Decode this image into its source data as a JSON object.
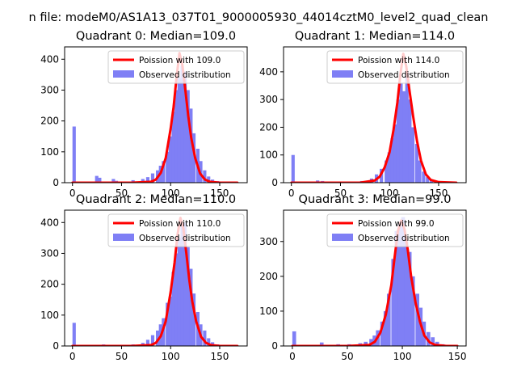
{
  "title": "n file: modeM0/AS1A13_037T01_9000005930_44014cztM0_level2_quad_clean",
  "colors": {
    "poisson": "#ff0000",
    "observed": "#7f7ff5",
    "axis": "#000000"
  },
  "chart_data": [
    {
      "type": "bar",
      "title": "Quadrant 0: Median=109.0",
      "xlim": [
        -8,
        178
      ],
      "ylim": [
        0,
        440
      ],
      "xticks": [
        0,
        50,
        100,
        150
      ],
      "yticks": [
        0,
        100,
        200,
        300,
        400
      ],
      "legend_position": "top-right",
      "series": [
        {
          "name": "Poission with 109.0",
          "kind": "line",
          "color": "#ff0000",
          "x": [
            0,
            60,
            80,
            85,
            90,
            95,
            100,
            103,
            106,
            109,
            112,
            115,
            118,
            121,
            125,
            130,
            135,
            140,
            150,
            168
          ],
          "y": [
            0,
            0,
            3,
            10,
            32,
            80,
            175,
            245,
            340,
            420,
            380,
            300,
            215,
            145,
            80,
            30,
            10,
            3,
            0,
            0
          ]
        },
        {
          "name": "Observed distribution",
          "kind": "histogram",
          "color": "#7f7ff5",
          "bin_width": 3.4,
          "x": [
            0,
            23,
            26,
            40,
            43,
            60,
            70,
            75,
            80,
            85,
            88,
            91,
            95,
            98,
            101,
            104,
            107,
            110,
            113,
            116,
            119,
            122,
            126,
            129,
            133,
            137,
            141,
            146,
            152
          ],
          "y": [
            182,
            22,
            16,
            12,
            6,
            8,
            12,
            18,
            30,
            40,
            55,
            70,
            100,
            150,
            230,
            300,
            340,
            380,
            360,
            300,
            240,
            160,
            110,
            70,
            40,
            20,
            10,
            5,
            2
          ]
        }
      ]
    },
    {
      "type": "bar",
      "title": "Quadrant 1: Median=114.0",
      "xlim": [
        -8,
        178
      ],
      "ylim": [
        0,
        490
      ],
      "xticks": [
        0,
        50,
        100,
        150
      ],
      "yticks": [
        0,
        100,
        200,
        300,
        400
      ],
      "legend_position": "top-right",
      "series": [
        {
          "name": "Poission with 114.0",
          "kind": "line",
          "color": "#ff0000",
          "x": [
            0,
            70,
            85,
            90,
            95,
            100,
            104,
            108,
            111,
            114,
            117,
            120,
            124,
            128,
            132,
            137,
            142,
            150,
            168
          ],
          "y": [
            0,
            0,
            8,
            22,
            55,
            110,
            190,
            290,
            390,
            465,
            420,
            340,
            240,
            150,
            80,
            30,
            10,
            2,
            0
          ]
        },
        {
          "name": "Observed distribution",
          "kind": "histogram",
          "color": "#7f7ff5",
          "bin_width": 3.4,
          "x": [
            0,
            25,
            30,
            40,
            50,
            70,
            80,
            85,
            90,
            95,
            98,
            101,
            104,
            107,
            110,
            113,
            116,
            119,
            122,
            126,
            129,
            133,
            137,
            141,
            146
          ],
          "y": [
            100,
            8,
            6,
            4,
            3,
            6,
            15,
            30,
            50,
            80,
            110,
            160,
            210,
            300,
            360,
            330,
            400,
            300,
            200,
            140,
            80,
            40,
            20,
            10,
            4
          ]
        }
      ]
    },
    {
      "type": "bar",
      "title": "Quadrant 2: Median=110.0",
      "xlim": [
        -8,
        178
      ],
      "ylim": [
        0,
        440
      ],
      "xticks": [
        0,
        50,
        100,
        150
      ],
      "yticks": [
        0,
        100,
        200,
        300,
        400
      ],
      "legend_position": "top-right",
      "series": [
        {
          "name": "Poission with 110.0",
          "kind": "line",
          "color": "#ff0000",
          "x": [
            0,
            60,
            80,
            85,
            90,
            95,
            100,
            104,
            107,
            110,
            113,
            116,
            119,
            122,
            126,
            131,
            136,
            141,
            150,
            168
          ],
          "y": [
            0,
            0,
            3,
            10,
            32,
            80,
            175,
            270,
            360,
            415,
            380,
            300,
            215,
            145,
            80,
            30,
            10,
            3,
            0,
            0
          ]
        },
        {
          "name": "Observed distribution",
          "kind": "histogram",
          "color": "#7f7ff5",
          "bin_width": 3.4,
          "x": [
            0,
            30,
            60,
            70,
            75,
            80,
            85,
            88,
            91,
            95,
            98,
            101,
            104,
            107,
            110,
            113,
            116,
            119,
            122,
            126,
            129,
            133,
            137,
            141,
            146
          ],
          "y": [
            75,
            5,
            5,
            10,
            20,
            35,
            50,
            70,
            90,
            140,
            160,
            240,
            300,
            350,
            390,
            400,
            320,
            250,
            170,
            110,
            70,
            50,
            25,
            12,
            5
          ]
        }
      ]
    },
    {
      "type": "bar",
      "title": "Quadrant 3: Median=99.0",
      "xlim": [
        -8,
        158
      ],
      "ylim": [
        0,
        390
      ],
      "xticks": [
        0,
        50,
        100,
        150
      ],
      "yticks": [
        0,
        100,
        200,
        300
      ],
      "legend_position": "top-right",
      "series": [
        {
          "name": "Poission with 99.0",
          "kind": "line",
          "color": "#ff0000",
          "x": [
            0,
            50,
            70,
            75,
            80,
            85,
            90,
            93,
            96,
            99,
            102,
            105,
            108,
            112,
            116,
            120,
            125,
            130,
            140,
            150
          ],
          "y": [
            0,
            0,
            3,
            12,
            38,
            90,
            175,
            255,
            330,
            360,
            335,
            275,
            200,
            125,
            70,
            30,
            10,
            3,
            0,
            0
          ]
        },
        {
          "name": "Observed distribution",
          "kind": "histogram",
          "color": "#7f7ff5",
          "bin_width": 3.4,
          "x": [
            0,
            25,
            40,
            50,
            60,
            65,
            70,
            73,
            76,
            80,
            83,
            86,
            90,
            93,
            96,
            99,
            102,
            105,
            108,
            112,
            115,
            118,
            122,
            126,
            130,
            135,
            140
          ],
          "y": [
            42,
            10,
            5,
            5,
            8,
            12,
            20,
            30,
            45,
            70,
            100,
            150,
            250,
            330,
            350,
            370,
            300,
            270,
            200,
            150,
            110,
            70,
            40,
            25,
            12,
            5,
            2
          ]
        }
      ]
    }
  ]
}
